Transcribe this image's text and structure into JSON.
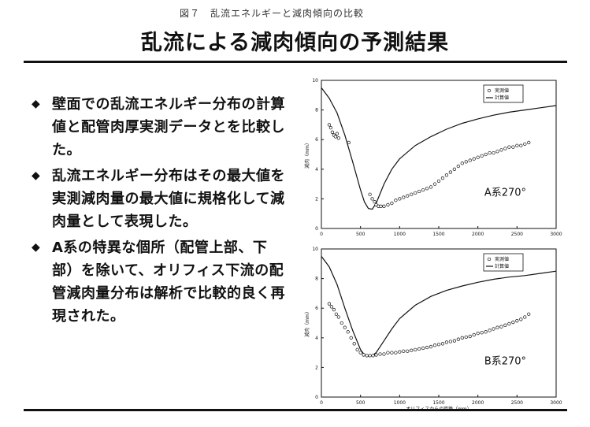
{
  "header": {
    "caption": "図７　乱流エネルギーと減肉傾向の比較",
    "title": "乱流による減肉傾向の予測結果"
  },
  "bullets": [
    "壁面での乱流エネルギー分布の計算値と配管肉厚実測データとを比較した。",
    "乱流エネルギー分布はその最大値を実測減肉量の最大値に規格化して減肉量として表現した。",
    "A系の特異な個所（配管上部、下部）を除いて、オリフィス下流の配管減肉量分布は解析で比較的良く再現された。"
  ],
  "chart_data": [
    {
      "type": "scatter",
      "label": "A系270°",
      "ylabel": "減肉（mm）",
      "xlim": [
        0,
        3000
      ],
      "ylim": [
        0,
        10
      ],
      "xticks": [
        0,
        500,
        1000,
        1500,
        2000,
        2500,
        3000
      ],
      "yticks": [
        0,
        2,
        4,
        6,
        8,
        10
      ],
      "legend": [
        "実測値",
        "計算値"
      ],
      "legend_position": "top-right",
      "series": [
        {
          "name": "計算値",
          "kind": "line",
          "x": [
            0,
            100,
            200,
            300,
            400,
            500,
            550,
            600,
            650,
            700,
            800,
            900,
            1000,
            1200,
            1400,
            1600,
            1800,
            2000,
            2200,
            2400,
            2600,
            2800,
            3000
          ],
          "y": [
            9.5,
            8.8,
            7.8,
            6.3,
            4.5,
            2.6,
            1.8,
            1.35,
            1.3,
            1.7,
            3.0,
            4.0,
            4.7,
            5.6,
            6.2,
            6.7,
            7.1,
            7.4,
            7.65,
            7.85,
            8.0,
            8.15,
            8.3
          ]
        },
        {
          "name": "実測値",
          "kind": "points",
          "x": [
            100,
            120,
            140,
            160,
            180,
            200,
            220,
            350,
            620,
            650,
            680,
            700,
            730,
            760,
            800,
            850,
            900,
            950,
            1000,
            1050,
            1100,
            1150,
            1200,
            1250,
            1300,
            1350,
            1400,
            1450,
            1500,
            1550,
            1600,
            1650,
            1700,
            1750,
            1800,
            1850,
            1900,
            1950,
            2000,
            2050,
            2100,
            2150,
            2200,
            2250,
            2300,
            2350,
            2400,
            2450,
            2500,
            2550,
            2600,
            2650
          ],
          "y": [
            7.0,
            6.8,
            6.5,
            6.3,
            6.2,
            6.4,
            6.1,
            5.8,
            2.3,
            2.0,
            1.8,
            1.6,
            1.5,
            1.5,
            1.5,
            1.6,
            1.7,
            1.9,
            2.0,
            2.1,
            2.2,
            2.3,
            2.4,
            2.5,
            2.6,
            2.7,
            2.8,
            3.0,
            3.2,
            3.4,
            3.6,
            3.8,
            4.0,
            4.2,
            4.4,
            4.5,
            4.6,
            4.7,
            4.8,
            4.9,
            5.0,
            5.1,
            5.1,
            5.2,
            5.3,
            5.4,
            5.5,
            5.5,
            5.6,
            5.6,
            5.7,
            5.8
          ]
        }
      ]
    },
    {
      "type": "scatter",
      "label": "B系270°",
      "xlabel": "オリフィスからの距離（mm）",
      "ylabel": "減肉（mm）",
      "xlim": [
        0,
        3000
      ],
      "ylim": [
        0,
        10
      ],
      "xticks": [
        0,
        500,
        1000,
        1500,
        2000,
        2500,
        3000
      ],
      "yticks": [
        0,
        2,
        4,
        6,
        8,
        10
      ],
      "legend": [
        "実測値",
        "計算値"
      ],
      "legend_position": "top-right",
      "series": [
        {
          "name": "計算値",
          "kind": "line",
          "x": [
            0,
            100,
            200,
            300,
            400,
            500,
            550,
            600,
            650,
            700,
            800,
            900,
            1000,
            1200,
            1400,
            1600,
            1800,
            2000,
            2200,
            2400,
            2600,
            2800,
            3000
          ],
          "y": [
            9.5,
            8.8,
            7.6,
            6.0,
            4.5,
            3.2,
            2.85,
            2.75,
            2.8,
            3.0,
            3.8,
            4.6,
            5.3,
            6.2,
            6.8,
            7.2,
            7.5,
            7.75,
            7.95,
            8.1,
            8.2,
            8.35,
            8.5
          ]
        },
        {
          "name": "実測値",
          "kind": "points",
          "x": [
            100,
            130,
            160,
            190,
            220,
            260,
            300,
            340,
            380,
            420,
            460,
            500,
            540,
            580,
            620,
            660,
            700,
            750,
            800,
            850,
            900,
            950,
            1000,
            1050,
            1100,
            1150,
            1200,
            1250,
            1300,
            1350,
            1400,
            1450,
            1500,
            1550,
            1600,
            1650,
            1700,
            1750,
            1800,
            1850,
            1900,
            1950,
            2000,
            2050,
            2100,
            2150,
            2200,
            2250,
            2300,
            2350,
            2400,
            2450,
            2500,
            2550,
            2600,
            2650
          ],
          "y": [
            6.3,
            6.1,
            5.9,
            5.6,
            5.4,
            5.0,
            4.7,
            4.4,
            4.0,
            3.6,
            3.2,
            3.0,
            2.85,
            2.8,
            2.8,
            2.8,
            2.85,
            2.9,
            2.9,
            3.0,
            3.0,
            3.0,
            3.05,
            3.1,
            3.1,
            3.15,
            3.2,
            3.25,
            3.3,
            3.35,
            3.4,
            3.5,
            3.55,
            3.6,
            3.7,
            3.75,
            3.8,
            3.9,
            4.0,
            4.05,
            4.1,
            4.2,
            4.3,
            4.35,
            4.4,
            4.5,
            4.6,
            4.7,
            4.75,
            4.85,
            4.95,
            5.05,
            5.15,
            5.25,
            5.4,
            5.6
          ]
        }
      ]
    }
  ]
}
